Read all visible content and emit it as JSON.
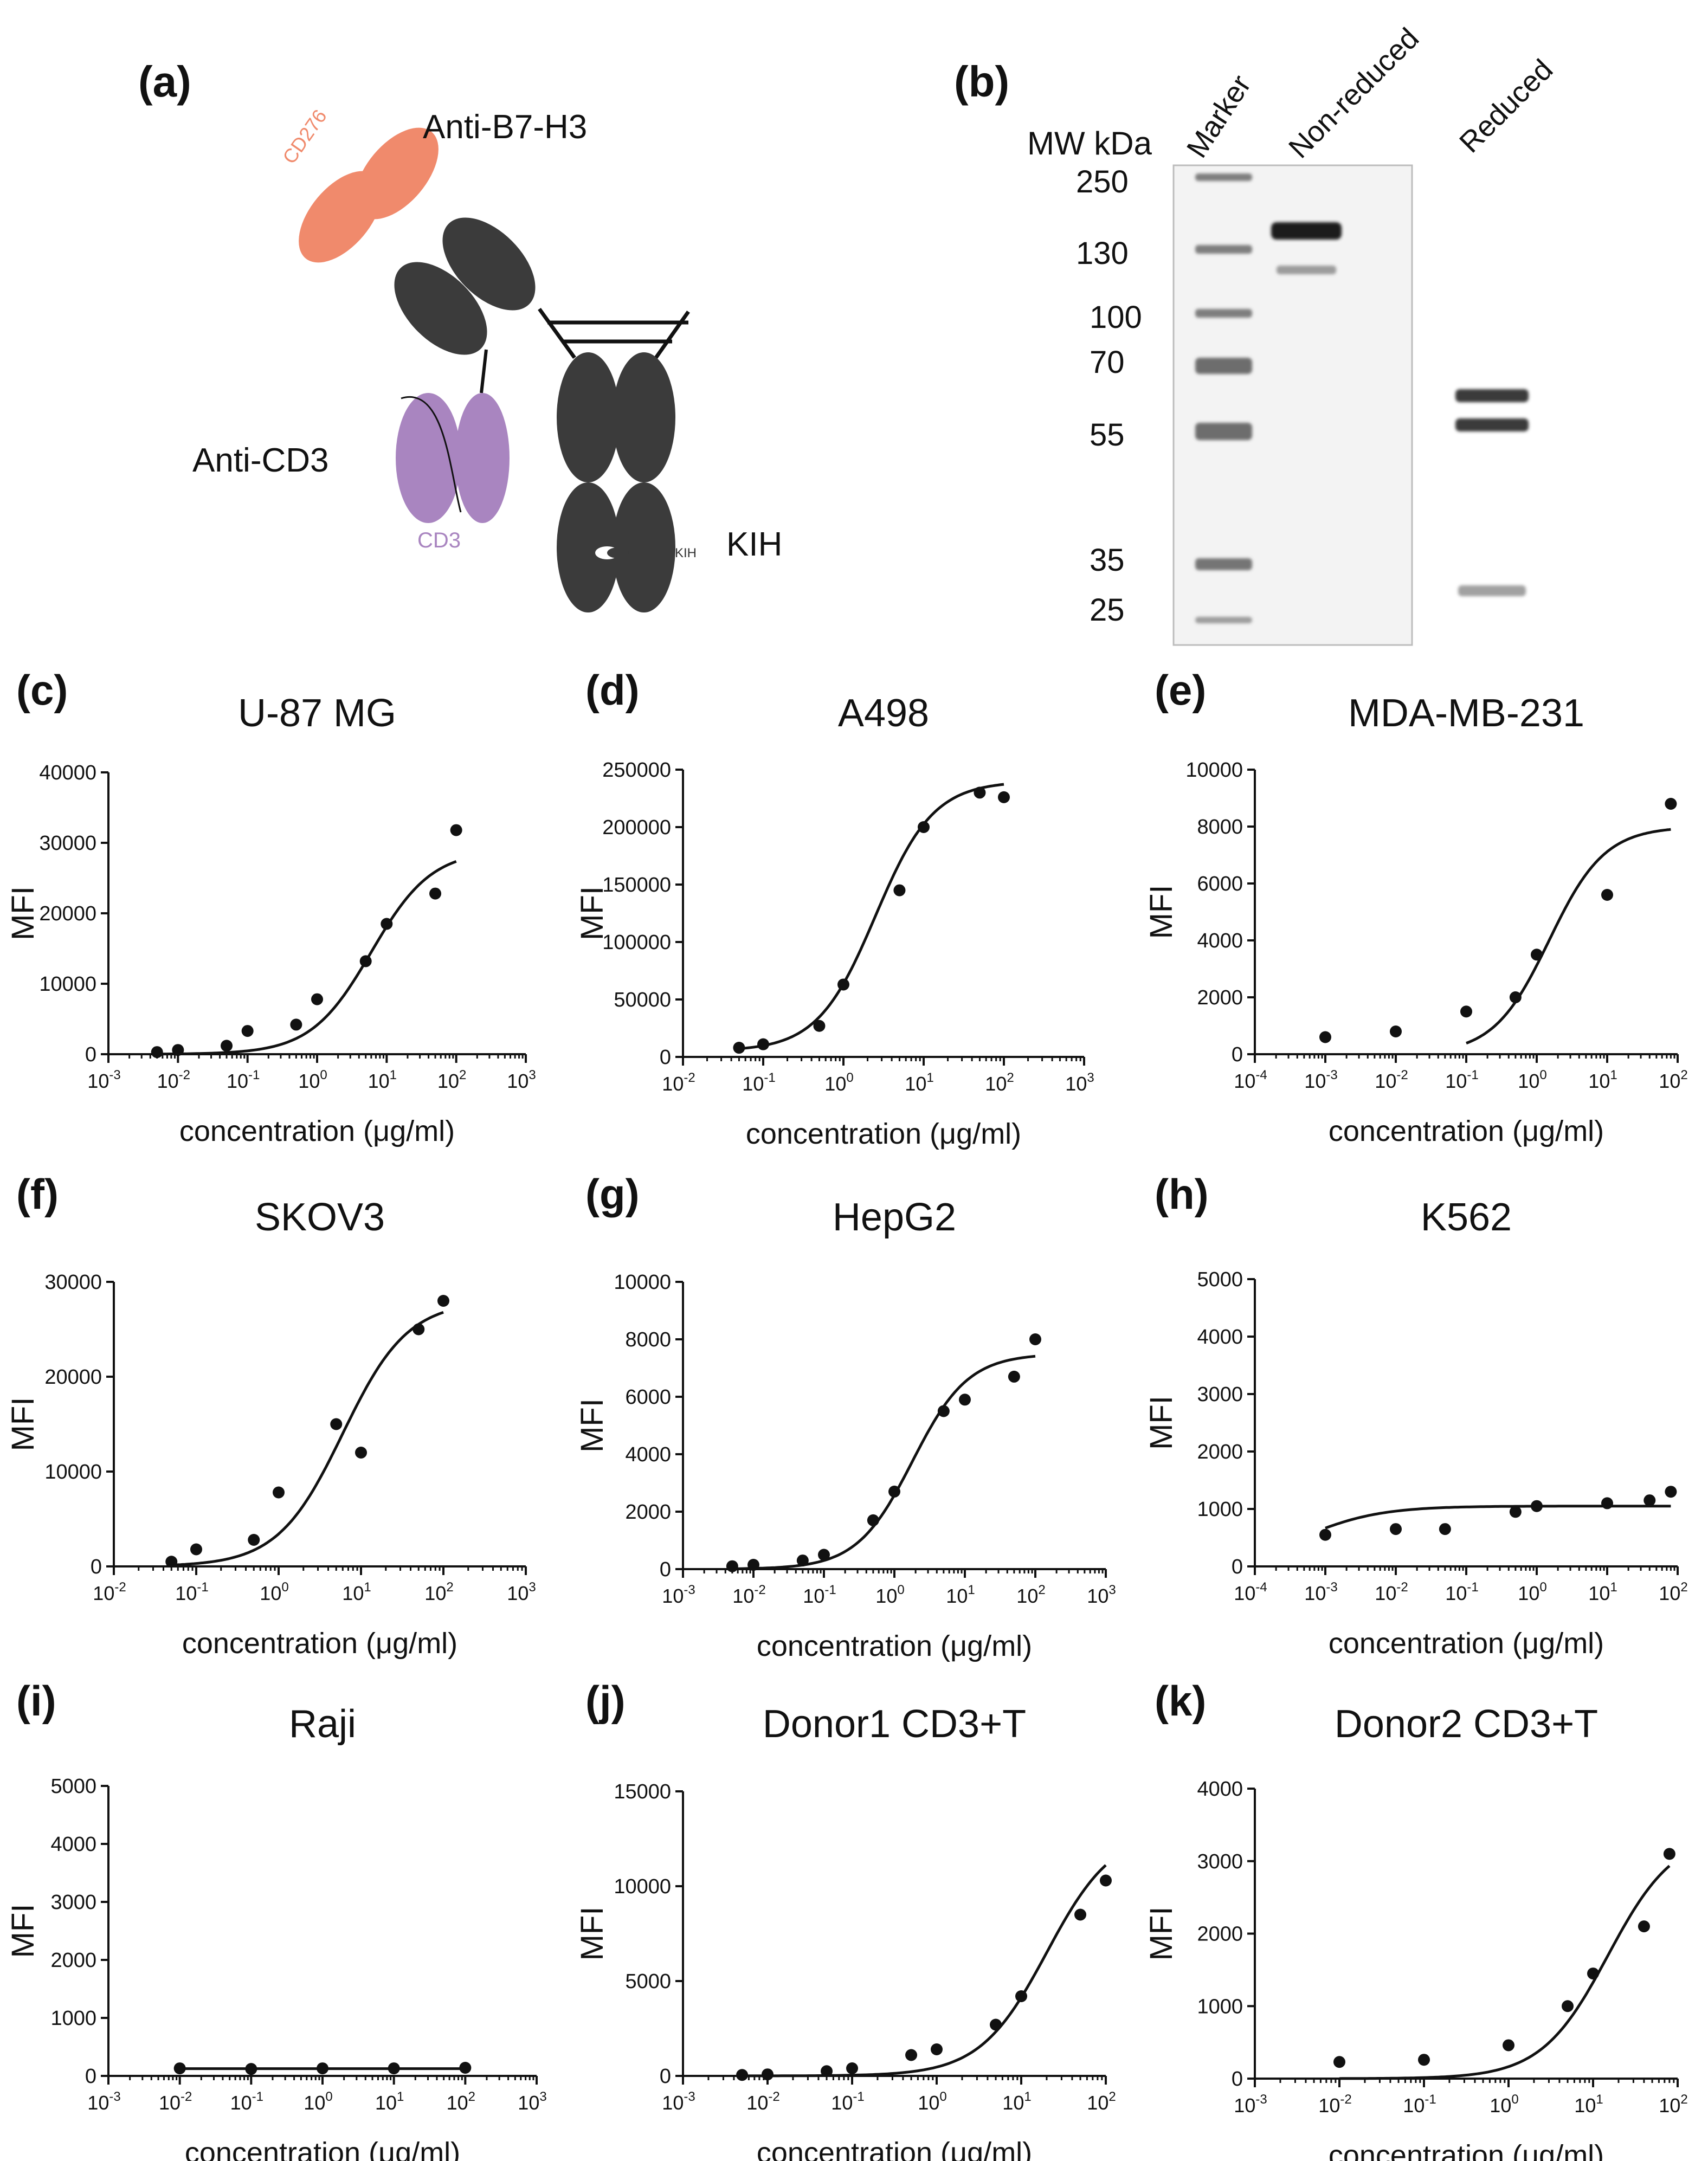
{
  "panel_a": {
    "letter": "(a)",
    "labels": {
      "anti_b7h3": "Anti-B7-H3",
      "cd276": "CD276",
      "anti_cd3": "Anti-CD3",
      "cd3": "CD3",
      "kih_small": "KIH",
      "kih": "KIH"
    },
    "colors": {
      "cd276": "#f08a6c",
      "cd3": "#a985c0",
      "heavy": "#3b3b3b"
    }
  },
  "panel_b": {
    "letter": "(b)",
    "mw_header": "MW kDa",
    "lane_labels": [
      "Marker",
      "Non-reduced",
      "Reduced"
    ],
    "mw_ticks": [
      "250",
      "130",
      "100",
      "70",
      "55",
      "35",
      "25"
    ]
  },
  "chart_data": [
    {
      "id": "c",
      "letter": "(c)",
      "type": "scatter",
      "title": "U-87 MG",
      "xlabel": "concentration (μg/ml)",
      "ylabel": "MFI",
      "x_scale": "log",
      "x_exp_range": [
        -3,
        3
      ],
      "ylim": [
        0,
        40000
      ],
      "yticks": [
        "0",
        "10000",
        "20000",
        "30000",
        "40000"
      ],
      "xticks": [
        "10-3",
        "10-2",
        "10-1",
        "100",
        "101",
        "102",
        "103"
      ],
      "points": [
        [
          0.005,
          300
        ],
        [
          0.01,
          600
        ],
        [
          0.05,
          1200
        ],
        [
          0.1,
          3300
        ],
        [
          0.5,
          4200
        ],
        [
          1,
          7800
        ],
        [
          5,
          13200
        ],
        [
          10,
          18500
        ],
        [
          50,
          22800
        ],
        [
          100,
          31800
        ]
      ],
      "fit": {
        "bottom": 0,
        "top": 29000,
        "ec50": 6,
        "hill": 1,
        "x_range": [
          0.005,
          100
        ]
      }
    },
    {
      "id": "d",
      "letter": "(d)",
      "type": "scatter",
      "title": "A498",
      "xlabel": "concentration (μg/ml)",
      "ylabel": "MFI",
      "x_scale": "log",
      "x_exp_range": [
        -2,
        3
      ],
      "ylim": [
        0,
        250000
      ],
      "yticks": [
        "0",
        "50000",
        "100000",
        "150000",
        "200000",
        "250000"
      ],
      "xticks": [
        "10-2",
        "10-1",
        "100",
        "101",
        "102",
        "103"
      ],
      "points": [
        [
          0.05,
          8000
        ],
        [
          0.1,
          11000
        ],
        [
          0.5,
          27000
        ],
        [
          1,
          63000
        ],
        [
          5,
          145000
        ],
        [
          10,
          200000
        ],
        [
          50,
          230000
        ],
        [
          100,
          226000
        ]
      ],
      "fit": {
        "bottom": 5000,
        "top": 240000,
        "ec50": 2.5,
        "hill": 1.2,
        "x_range": [
          0.05,
          100
        ]
      }
    },
    {
      "id": "e",
      "letter": "(e)",
      "type": "scatter",
      "title": "MDA-MB-231",
      "xlabel": "concentration (μg/ml)",
      "ylabel": "MFI",
      "x_scale": "log",
      "x_exp_range": [
        -4,
        2
      ],
      "ylim": [
        0,
        10000
      ],
      "yticks": [
        "0",
        "2000",
        "4000",
        "6000",
        "8000",
        "10000"
      ],
      "xticks": [
        "10-4",
        "10-3",
        "10-2",
        "10-1",
        "100",
        "101",
        "102"
      ],
      "points": [
        [
          0.001,
          600
        ],
        [
          0.01,
          800
        ],
        [
          0.1,
          1500
        ],
        [
          0.5,
          2000
        ],
        [
          1,
          3500
        ],
        [
          10,
          5600
        ],
        [
          80,
          8800
        ]
      ],
      "fit": {
        "bottom": 0,
        "top": 8000,
        "ec50": 1.5,
        "hill": 1.1,
        "x_range": [
          0.1,
          80
        ]
      }
    },
    {
      "id": "f",
      "letter": "(f)",
      "type": "scatter",
      "title": "SKOV3",
      "xlabel": "concentration (μg/ml)",
      "ylabel": "MFI",
      "x_scale": "log",
      "x_exp_range": [
        -2,
        3
      ],
      "ylim": [
        0,
        30000
      ],
      "yticks": [
        "0",
        "10000",
        "20000",
        "30000"
      ],
      "xticks": [
        "10-2",
        "10-1",
        "100",
        "101",
        "102",
        "103"
      ],
      "points": [
        [
          0.05,
          500
        ],
        [
          0.1,
          1800
        ],
        [
          0.5,
          2800
        ],
        [
          1,
          7800
        ],
        [
          5,
          15000
        ],
        [
          10,
          12000
        ],
        [
          50,
          25000
        ],
        [
          100,
          28000
        ]
      ],
      "fit": {
        "bottom": 0,
        "top": 28000,
        "ec50": 6,
        "hill": 1.1,
        "x_range": [
          0.05,
          100
        ]
      }
    },
    {
      "id": "g",
      "letter": "(g)",
      "type": "scatter",
      "title": "HepG2",
      "xlabel": "concentration (μg/ml)",
      "ylabel": "MFI",
      "x_scale": "log",
      "x_exp_range": [
        -3,
        3
      ],
      "ylim": [
        0,
        10000
      ],
      "yticks": [
        "0",
        "2000",
        "4000",
        "6000",
        "8000",
        "10000"
      ],
      "xticks": [
        "10-3",
        "10-2",
        "10-1",
        "100",
        "101",
        "102",
        "103"
      ],
      "points": [
        [
          0.005,
          100
        ],
        [
          0.01,
          150
        ],
        [
          0.05,
          300
        ],
        [
          0.1,
          500
        ],
        [
          0.5,
          1700
        ],
        [
          1,
          2700
        ],
        [
          5,
          5500
        ],
        [
          10,
          5900
        ],
        [
          50,
          6700
        ],
        [
          100,
          8000
        ]
      ],
      "fit": {
        "bottom": 0,
        "top": 7500,
        "ec50": 1.8,
        "hill": 1.1,
        "x_range": [
          0.005,
          100
        ]
      }
    },
    {
      "id": "h",
      "letter": "(h)",
      "type": "scatter",
      "title": "K562",
      "xlabel": "concentration (μg/ml)",
      "ylabel": "MFI",
      "x_scale": "log",
      "x_exp_range": [
        -4,
        2
      ],
      "ylim": [
        0,
        5000
      ],
      "yticks": [
        "0",
        "1000",
        "2000",
        "3000",
        "4000",
        "5000"
      ],
      "xticks": [
        "10-4",
        "10-3",
        "10-2",
        "10-1",
        "100",
        "101",
        "102"
      ],
      "points": [
        [
          0.001,
          550
        ],
        [
          0.01,
          650
        ],
        [
          0.05,
          650
        ],
        [
          0.5,
          950
        ],
        [
          1,
          1050
        ],
        [
          10,
          1100
        ],
        [
          40,
          1150
        ],
        [
          80,
          1300
        ]
      ],
      "fit": {
        "bottom": 0,
        "top": 1050,
        "ec50": 0.0005,
        "hill": 0.8,
        "x_range": [
          0.001,
          80
        ]
      }
    },
    {
      "id": "i",
      "letter": "(i)",
      "type": "scatter",
      "title": "Raji",
      "xlabel": "concentration (μg/ml)",
      "ylabel": "MFI",
      "x_scale": "log",
      "x_exp_range": [
        -3,
        3
      ],
      "ylim": [
        0,
        5000
      ],
      "yticks": [
        "0",
        "1000",
        "2000",
        "3000",
        "4000",
        "5000"
      ],
      "xticks": [
        "10-3",
        "10-2",
        "10-1",
        "100",
        "101",
        "102",
        "103"
      ],
      "points": [
        [
          0.01,
          130
        ],
        [
          0.1,
          120
        ],
        [
          1,
          130
        ],
        [
          10,
          130
        ],
        [
          100,
          140
        ]
      ],
      "fit": {
        "bottom": 125,
        "top": 125,
        "ec50": 1,
        "hill": 1,
        "x_range": [
          0.01,
          100
        ]
      }
    },
    {
      "id": "j",
      "letter": "(j)",
      "type": "scatter",
      "title": "Donor1 CD3+T",
      "xlabel": "concentration (μg/ml)",
      "ylabel": "MFI",
      "x_scale": "log",
      "x_exp_range": [
        -3,
        2
      ],
      "ylim": [
        0,
        15000
      ],
      "yticks": [
        "0",
        "5000",
        "10000",
        "15000"
      ],
      "xticks": [
        "10-3",
        "10-2",
        "10-1",
        "100",
        "101",
        "102"
      ],
      "points": [
        [
          0.005,
          50
        ],
        [
          0.01,
          80
        ],
        [
          0.05,
          250
        ],
        [
          0.1,
          400
        ],
        [
          0.5,
          1100
        ],
        [
          1,
          1400
        ],
        [
          5,
          2700
        ],
        [
          10,
          4200
        ],
        [
          50,
          8500
        ],
        [
          100,
          10300
        ]
      ],
      "fit": {
        "bottom": 0,
        "top": 13000,
        "ec50": 20,
        "hill": 1.1,
        "x_range": [
          0.005,
          100
        ]
      }
    },
    {
      "id": "k",
      "letter": "(k)",
      "type": "scatter",
      "title": "Donor2 CD3+T",
      "xlabel": "concentration (μg/ml)",
      "ylabel": "MFI",
      "x_scale": "log",
      "x_exp_range": [
        -3,
        2
      ],
      "ylim": [
        0,
        4000
      ],
      "yticks": [
        "0",
        "1000",
        "2000",
        "3000",
        "4000"
      ],
      "xticks": [
        "10-3",
        "10-2",
        "10-1",
        "100",
        "101",
        "102"
      ],
      "points": [
        [
          0.01,
          230
        ],
        [
          0.1,
          260
        ],
        [
          1,
          460
        ],
        [
          5,
          1000
        ],
        [
          10,
          1450
        ],
        [
          40,
          2100
        ],
        [
          80,
          3100
        ]
      ],
      "fit": {
        "bottom": 0,
        "top": 3400,
        "ec50": 15,
        "hill": 1.1,
        "x_range": [
          0.01,
          80
        ]
      }
    }
  ]
}
